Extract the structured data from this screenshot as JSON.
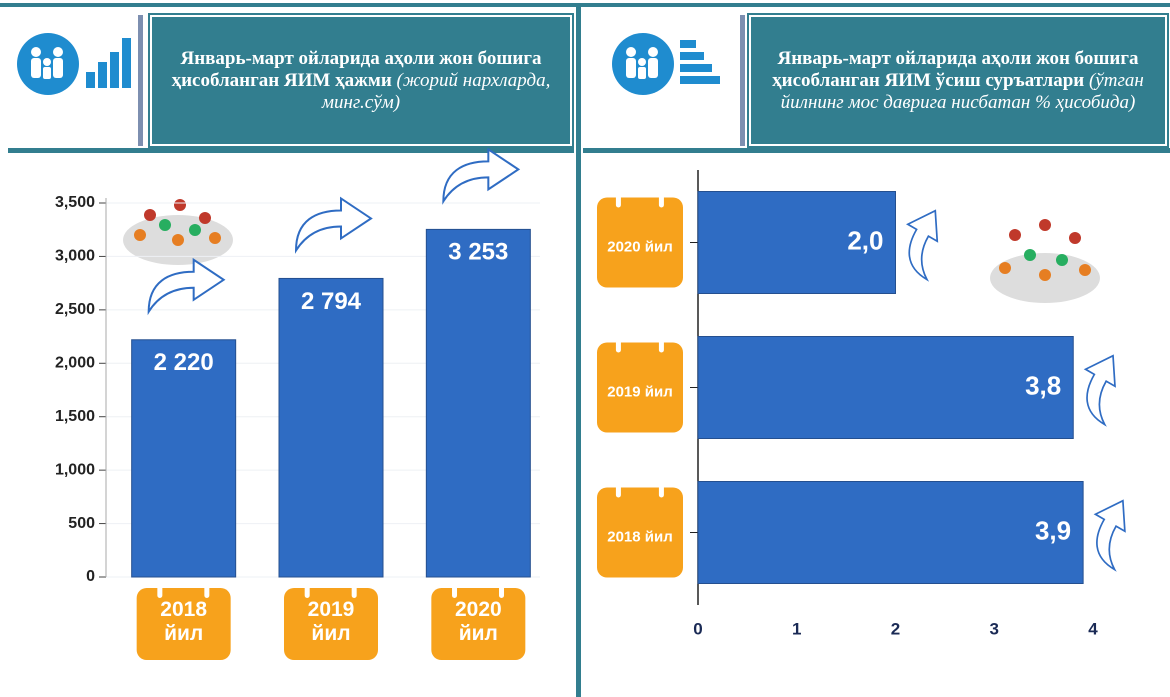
{
  "chart_data": [
    {
      "type": "bar",
      "title": "Январь-март ойларида аҳоли жон бошига ҳисобланган ЯИМ ҳажми",
      "subtitle": "(жорий нархларда, минг.сўм)",
      "categories": [
        "2018 йил",
        "2019 йил",
        "2020 йил"
      ],
      "values": [
        2220,
        2794,
        3253
      ],
      "value_labels": [
        "2 220",
        "2 794",
        "3 253"
      ],
      "color": "#2f6cc3",
      "ylim": [
        0,
        3500
      ],
      "yticks": [
        0,
        500,
        {
          "value": 1000,
          "label": "1,000"
        },
        {
          "value": 1500,
          "label": "1,500"
        },
        {
          "value": 2000,
          "label": "2,000"
        },
        {
          "value": 2500,
          "label": "2,500"
        },
        {
          "value": 3000,
          "label": "3,000"
        },
        {
          "value": 3500,
          "label": "3,500"
        }
      ],
      "grid": true
    },
    {
      "type": "barh",
      "title": "Январь-март ойларида аҳоли жон бошига ҳисобланган ЯИМ ўсиш суръатлари",
      "subtitle": "(ўтган йилнинг мос даврига нисбатан % ҳисобида)",
      "categories": [
        "2020 йил",
        "2019 йил",
        "2018 йил"
      ],
      "values": [
        2.0,
        3.8,
        3.9
      ],
      "value_labels": [
        "2,0",
        "3,8",
        "3,9"
      ],
      "color": "#2f6cc3",
      "xlim": [
        0,
        4
      ],
      "xticks": [
        0,
        1,
        2,
        3,
        4
      ],
      "grid": false
    }
  ]
}
